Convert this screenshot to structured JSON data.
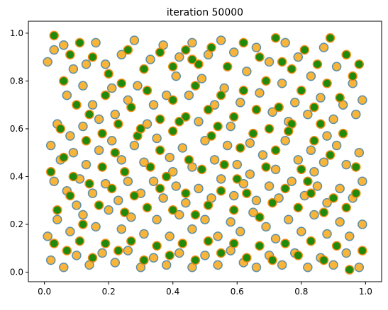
{
  "chart_data": {
    "type": "scatter",
    "title": "iteration 50000",
    "xlim": [
      -0.05,
      1.05
    ],
    "ylim": [
      -0.04,
      1.05
    ],
    "x_ticks": [
      0.0,
      0.2,
      0.4,
      0.6,
      0.8,
      1.0
    ],
    "x_tick_labels": [
      "0.0",
      "0.2",
      "0.4",
      "0.6",
      "0.8",
      "1.0"
    ],
    "y_ticks": [
      0.0,
      0.2,
      0.4,
      0.6,
      0.8,
      1.0
    ],
    "y_tick_labels": [
      "0.0",
      "0.2",
      "0.4",
      "0.6",
      "0.8",
      "1.0"
    ],
    "grid": false,
    "legend": "none",
    "colors": {
      "orange_fill": "#f9b43a",
      "orange_edge": "#5e8fa6",
      "green_fill": "#1f8a0b",
      "green_edge": "#ef8c18",
      "axes": "#000000"
    },
    "series": [
      {
        "marker_fill": "#f9b43a",
        "marker_edge": "#5e8fa6",
        "points": [
          [
            0.01,
            0.88
          ],
          [
            0.03,
            0.93
          ],
          [
            0.06,
            0.95
          ],
          [
            0.09,
            0.85
          ],
          [
            0.13,
            0.87
          ],
          [
            0.16,
            0.96
          ],
          [
            0.19,
            0.87
          ],
          [
            0.21,
            0.77
          ],
          [
            0.12,
            0.78
          ],
          [
            0.07,
            0.74
          ],
          [
            0.04,
            0.62
          ],
          [
            0.08,
            0.57
          ],
          [
            0.12,
            0.61
          ],
          [
            0.17,
            0.64
          ],
          [
            0.22,
            0.66
          ],
          [
            0.26,
            0.72
          ],
          [
            0.29,
            0.78
          ],
          [
            0.34,
            0.7
          ],
          [
            0.38,
            0.74
          ],
          [
            0.41,
            0.82
          ],
          [
            0.45,
            0.74
          ],
          [
            0.49,
            0.81
          ],
          [
            0.53,
            0.7
          ],
          [
            0.56,
            0.77
          ],
          [
            0.61,
            0.71
          ],
          [
            0.63,
            0.84
          ],
          [
            0.67,
            0.75
          ],
          [
            0.71,
            0.67
          ],
          [
            0.74,
            0.79
          ],
          [
            0.78,
            0.71
          ],
          [
            0.82,
            0.66
          ],
          [
            0.86,
            0.73
          ],
          [
            0.9,
            0.64
          ],
          [
            0.93,
            0.7
          ],
          [
            0.97,
            0.66
          ],
          [
            0.99,
            0.72
          ],
          [
            0.96,
            0.79
          ],
          [
            0.91,
            0.86
          ],
          [
            0.87,
            0.94
          ],
          [
            0.83,
            0.82
          ],
          [
            0.79,
            0.9
          ],
          [
            0.75,
            0.96
          ],
          [
            0.7,
            0.88
          ],
          [
            0.66,
            0.94
          ],
          [
            0.59,
            0.92
          ],
          [
            0.55,
            0.97
          ],
          [
            0.51,
            0.91
          ],
          [
            0.46,
            0.96
          ],
          [
            0.42,
            0.9
          ],
          [
            0.37,
            0.95
          ],
          [
            0.33,
            0.89
          ],
          [
            0.28,
            0.97
          ],
          [
            0.24,
            0.91
          ],
          [
            0.02,
            0.53
          ],
          [
            0.05,
            0.47
          ],
          [
            0.09,
            0.5
          ],
          [
            0.13,
            0.45
          ],
          [
            0.17,
            0.51
          ],
          [
            0.21,
            0.55
          ],
          [
            0.24,
            0.47
          ],
          [
            0.28,
            0.53
          ],
          [
            0.31,
            0.46
          ],
          [
            0.35,
            0.56
          ],
          [
            0.39,
            0.48
          ],
          [
            0.43,
            0.52
          ],
          [
            0.46,
            0.44
          ],
          [
            0.5,
            0.55
          ],
          [
            0.53,
            0.47
          ],
          [
            0.57,
            0.53
          ],
          [
            0.6,
            0.45
          ],
          [
            0.64,
            0.54
          ],
          [
            0.68,
            0.49
          ],
          [
            0.72,
            0.43
          ],
          [
            0.75,
            0.55
          ],
          [
            0.79,
            0.47
          ],
          [
            0.83,
            0.51
          ],
          [
            0.87,
            0.46
          ],
          [
            0.91,
            0.53
          ],
          [
            0.94,
            0.45
          ],
          [
            0.98,
            0.5
          ],
          [
            0.03,
            0.38
          ],
          [
            0.07,
            0.34
          ],
          [
            0.11,
            0.39
          ],
          [
            0.15,
            0.33
          ],
          [
            0.19,
            0.37
          ],
          [
            0.23,
            0.3
          ],
          [
            0.26,
            0.38
          ],
          [
            0.3,
            0.33
          ],
          [
            0.34,
            0.38
          ],
          [
            0.37,
            0.31
          ],
          [
            0.41,
            0.36
          ],
          [
            0.44,
            0.29
          ],
          [
            0.48,
            0.35
          ],
          [
            0.52,
            0.31
          ],
          [
            0.55,
            0.39
          ],
          [
            0.59,
            0.32
          ],
          [
            0.62,
            0.37
          ],
          [
            0.66,
            0.3
          ],
          [
            0.7,
            0.36
          ],
          [
            0.73,
            0.31
          ],
          [
            0.77,
            0.38
          ],
          [
            0.81,
            0.32
          ],
          [
            0.85,
            0.36
          ],
          [
            0.88,
            0.29
          ],
          [
            0.92,
            0.35
          ],
          [
            0.96,
            0.31
          ],
          [
            0.99,
            0.38
          ],
          [
            0.01,
            0.15
          ],
          [
            0.04,
            0.22
          ],
          [
            0.08,
            0.17
          ],
          [
            0.12,
            0.24
          ],
          [
            0.16,
            0.19
          ],
          [
            0.2,
            0.26
          ],
          [
            0.24,
            0.18
          ],
          [
            0.27,
            0.23
          ],
          [
            0.31,
            0.16
          ],
          [
            0.35,
            0.22
          ],
          [
            0.39,
            0.15
          ],
          [
            0.42,
            0.24
          ],
          [
            0.46,
            0.18
          ],
          [
            0.5,
            0.22
          ],
          [
            0.54,
            0.15
          ],
          [
            0.58,
            0.21
          ],
          [
            0.61,
            0.17
          ],
          [
            0.65,
            0.25
          ],
          [
            0.69,
            0.19
          ],
          [
            0.72,
            0.14
          ],
          [
            0.76,
            0.22
          ],
          [
            0.8,
            0.17
          ],
          [
            0.84,
            0.24
          ],
          [
            0.88,
            0.16
          ],
          [
            0.92,
            0.21
          ],
          [
            0.95,
            0.15
          ],
          [
            0.99,
            0.2
          ],
          [
            0.02,
            0.05
          ],
          [
            0.06,
            0.02
          ],
          [
            0.1,
            0.07
          ],
          [
            0.14,
            0.03
          ],
          [
            0.18,
            0.08
          ],
          [
            0.22,
            0.04
          ],
          [
            0.26,
            0.09
          ],
          [
            0.3,
            0.02
          ],
          [
            0.34,
            0.06
          ],
          [
            0.38,
            0.03
          ],
          [
            0.42,
            0.08
          ],
          [
            0.46,
            0.02
          ],
          [
            0.5,
            0.07
          ],
          [
            0.54,
            0.03
          ],
          [
            0.58,
            0.09
          ],
          [
            0.62,
            0.04
          ],
          [
            0.66,
            0.02
          ],
          [
            0.7,
            0.07
          ],
          [
            0.74,
            0.03
          ],
          [
            0.78,
            0.08
          ],
          [
            0.82,
            0.02
          ],
          [
            0.86,
            0.06
          ],
          [
            0.9,
            0.03
          ],
          [
            0.94,
            0.08
          ],
          [
            0.98,
            0.02
          ],
          [
            0.15,
            0.7
          ],
          [
            0.32,
            0.62
          ],
          [
            0.48,
            0.63
          ],
          [
            0.58,
            0.61
          ],
          [
            0.76,
            0.63
          ],
          [
            0.88,
            0.57
          ],
          [
            0.1,
            0.28
          ],
          [
            0.4,
            0.42
          ],
          [
            0.64,
            0.41
          ],
          [
            0.84,
            0.42
          ]
        ]
      },
      {
        "marker_fill": "#1f8a0b",
        "marker_edge": "#ef8c18",
        "points": [
          [
            0.03,
            0.99
          ],
          [
            0.08,
            0.91
          ],
          [
            0.11,
            0.96
          ],
          [
            0.15,
            0.9
          ],
          [
            0.2,
            0.83
          ],
          [
            0.26,
            0.93
          ],
          [
            0.31,
            0.85
          ],
          [
            0.36,
            0.92
          ],
          [
            0.4,
            0.86
          ],
          [
            0.44,
            0.93
          ],
          [
            0.48,
            0.87
          ],
          [
            0.52,
            0.94
          ],
          [
            0.57,
            0.86
          ],
          [
            0.62,
            0.96
          ],
          [
            0.67,
            0.9
          ],
          [
            0.72,
            0.98
          ],
          [
            0.77,
            0.85
          ],
          [
            0.81,
            0.93
          ],
          [
            0.85,
            0.87
          ],
          [
            0.89,
            0.98
          ],
          [
            0.94,
            0.91
          ],
          [
            0.98,
            0.87
          ],
          [
            0.06,
            0.8
          ],
          [
            0.1,
            0.7
          ],
          [
            0.14,
            0.66
          ],
          [
            0.19,
            0.74
          ],
          [
            0.23,
            0.62
          ],
          [
            0.27,
            0.69
          ],
          [
            0.32,
            0.76
          ],
          [
            0.36,
            0.64
          ],
          [
            0.4,
            0.72
          ],
          [
            0.44,
            0.65
          ],
          [
            0.47,
            0.78
          ],
          [
            0.51,
            0.68
          ],
          [
            0.55,
            0.74
          ],
          [
            0.59,
            0.65
          ],
          [
            0.62,
            0.76
          ],
          [
            0.66,
            0.68
          ],
          [
            0.69,
            0.8
          ],
          [
            0.73,
            0.69
          ],
          [
            0.77,
            0.62
          ],
          [
            0.8,
            0.76
          ],
          [
            0.84,
            0.69
          ],
          [
            0.88,
            0.79
          ],
          [
            0.92,
            0.73
          ],
          [
            0.96,
            0.82
          ],
          [
            0.02,
            0.42
          ],
          [
            0.06,
            0.48
          ],
          [
            0.09,
            0.4
          ],
          [
            0.13,
            0.55
          ],
          [
            0.18,
            0.44
          ],
          [
            0.22,
            0.5
          ],
          [
            0.25,
            0.42
          ],
          [
            0.29,
            0.57
          ],
          [
            0.33,
            0.44
          ],
          [
            0.36,
            0.51
          ],
          [
            0.4,
            0.59
          ],
          [
            0.45,
            0.47
          ],
          [
            0.49,
            0.43
          ],
          [
            0.52,
            0.57
          ],
          [
            0.56,
            0.45
          ],
          [
            0.61,
            0.52
          ],
          [
            0.65,
            0.58
          ],
          [
            0.69,
            0.44
          ],
          [
            0.72,
            0.51
          ],
          [
            0.76,
            0.59
          ],
          [
            0.8,
            0.43
          ],
          [
            0.84,
            0.55
          ],
          [
            0.89,
            0.49
          ],
          [
            0.93,
            0.58
          ],
          [
            0.97,
            0.44
          ],
          [
            0.04,
            0.26
          ],
          [
            0.08,
            0.32
          ],
          [
            0.12,
            0.2
          ],
          [
            0.17,
            0.28
          ],
          [
            0.21,
            0.35
          ],
          [
            0.25,
            0.25
          ],
          [
            0.28,
            0.32
          ],
          [
            0.32,
            0.27
          ],
          [
            0.36,
            0.35
          ],
          [
            0.4,
            0.26
          ],
          [
            0.44,
            0.33
          ],
          [
            0.47,
            0.24
          ],
          [
            0.51,
            0.28
          ],
          [
            0.55,
            0.34
          ],
          [
            0.59,
            0.26
          ],
          [
            0.63,
            0.33
          ],
          [
            0.67,
            0.23
          ],
          [
            0.71,
            0.29
          ],
          [
            0.75,
            0.35
          ],
          [
            0.79,
            0.27
          ],
          [
            0.83,
            0.33
          ],
          [
            0.87,
            0.25
          ],
          [
            0.9,
            0.31
          ],
          [
            0.94,
            0.27
          ],
          [
            0.97,
            0.33
          ],
          [
            0.03,
            0.12
          ],
          [
            0.07,
            0.09
          ],
          [
            0.11,
            0.13
          ],
          [
            0.15,
            0.06
          ],
          [
            0.19,
            0.12
          ],
          [
            0.23,
            0.09
          ],
          [
            0.27,
            0.13
          ],
          [
            0.31,
            0.05
          ],
          [
            0.35,
            0.11
          ],
          [
            0.39,
            0.07
          ],
          [
            0.43,
            0.12
          ],
          [
            0.47,
            0.05
          ],
          [
            0.51,
            0.13
          ],
          [
            0.55,
            0.08
          ],
          [
            0.59,
            0.12
          ],
          [
            0.63,
            0.06
          ],
          [
            0.67,
            0.11
          ],
          [
            0.71,
            0.05
          ],
          [
            0.75,
            0.12
          ],
          [
            0.79,
            0.07
          ],
          [
            0.83,
            0.13
          ],
          [
            0.87,
            0.05
          ],
          [
            0.91,
            0.11
          ],
          [
            0.95,
            0.01
          ],
          [
            0.99,
            0.09
          ],
          [
            0.05,
            0.6
          ],
          [
            0.18,
            0.58
          ],
          [
            0.3,
            0.6
          ],
          [
            0.42,
            0.63
          ],
          [
            0.54,
            0.61
          ],
          [
            0.7,
            0.6
          ],
          [
            0.86,
            0.62
          ],
          [
            0.14,
            0.37
          ],
          [
            0.38,
            0.4
          ],
          [
            0.6,
            0.39
          ],
          [
            0.82,
            0.38
          ],
          [
            0.46,
            0.89
          ],
          [
            0.24,
            0.79
          ],
          [
            0.74,
            0.88
          ]
        ]
      }
    ]
  }
}
